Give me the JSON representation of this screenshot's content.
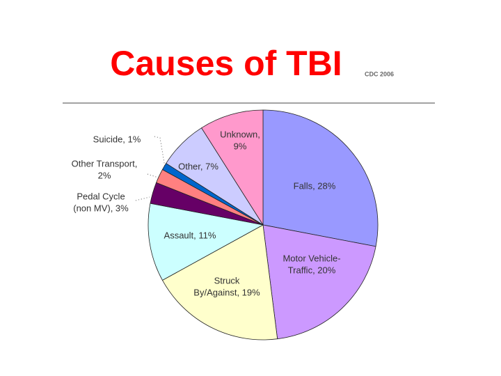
{
  "chart_data": {
    "type": "pie",
    "title": "Causes of TBI",
    "subtitle": "CDC 2006",
    "values": [
      28,
      20,
      19,
      11,
      3,
      2,
      1,
      7,
      9
    ],
    "value_labels": [
      [
        "Falls, 28%"
      ],
      [
        "Motor Vehicle-",
        "Traffic, 20%"
      ],
      [
        "Struck",
        "By/Against, 19%"
      ],
      [
        "Assault, 11%"
      ],
      [
        "Pedal Cycle",
        "(non MV), 3%"
      ],
      [
        "Other Transport,",
        "2%"
      ],
      [
        "Suicide, 1%"
      ],
      [
        "Other, 7%"
      ],
      [
        "Unknown,",
        "9%"
      ]
    ],
    "colors": [
      "#9999ff",
      "#cc99ff",
      "#ffffcc",
      "#ccffff",
      "#660066",
      "#ff8080",
      "#0066cc",
      "#ccccff",
      "#ff99cc"
    ]
  }
}
